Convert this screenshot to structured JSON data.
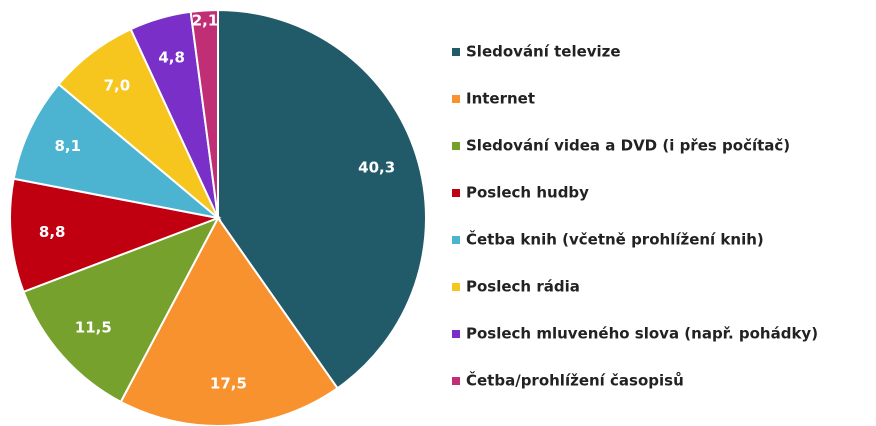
{
  "chart_data": {
    "type": "pie",
    "categories": [
      "Sledování televize",
      "Internet",
      "Sledování videa a DVD (i přes počítač)",
      "Poslech hudby",
      "Četba knih (včetně prohlížení knih)",
      "Poslech rádia",
      "Poslech mluveného slova (např. pohádky)",
      "Četba/prohlížení časopisů"
    ],
    "values": [
      40.3,
      17.5,
      11.5,
      8.8,
      8.1,
      7.0,
      4.8,
      2.1
    ],
    "value_labels": [
      "40,3",
      "17,5",
      "11,5",
      "8,8",
      "8,1",
      "7,0",
      "4,8",
      "2,1"
    ],
    "colors": [
      "#215a69",
      "#f7922f",
      "#76a12c",
      "#c00010",
      "#4cb4d1",
      "#f6c61e",
      "#7a2fc8",
      "#c02f75"
    ],
    "legend": "right"
  }
}
